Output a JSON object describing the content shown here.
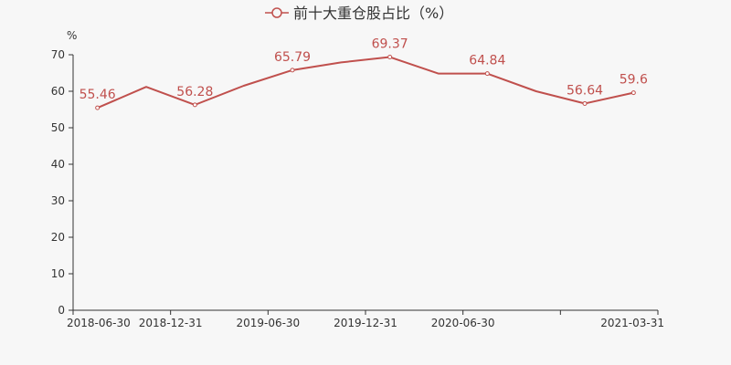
{
  "chart_data": {
    "type": "line",
    "legend": "前十大重仓股占比（%）",
    "legend_position": "top-center",
    "y_unit": "%",
    "x": [
      "2018-06-30",
      "2018-09-30",
      "2018-12-31",
      "2019-03-31",
      "2019-06-30",
      "2019-09-30",
      "2019-12-31",
      "2020-03-31",
      "2020-06-30",
      "2020-09-30",
      "2020-12-31",
      "2021-03-31"
    ],
    "x_tick_labels": [
      "2018-06-30",
      "2018-12-31",
      "2019-06-30",
      "2019-12-31",
      "2020-06-30",
      "",
      "2021-03-31"
    ],
    "series": [
      {
        "name": "前十大重仓股占比（%）",
        "values": [
          55.46,
          61.2,
          56.28,
          61.5,
          65.79,
          67.9,
          69.37,
          64.84,
          64.84,
          60.0,
          56.64,
          59.6
        ]
      }
    ],
    "data_labels": [
      "55.46",
      "",
      "56.28",
      "",
      "65.79",
      "",
      "69.37",
      "",
      "64.84",
      "",
      "56.64",
      "59.6"
    ],
    "y_ticks": [
      0,
      10,
      20,
      30,
      40,
      50,
      60,
      70
    ],
    "ylim": [
      0,
      70
    ],
    "grid": false,
    "colors": {
      "line": "#c0504d",
      "axis": "#333333",
      "background": "#f7f7f7"
    }
  }
}
